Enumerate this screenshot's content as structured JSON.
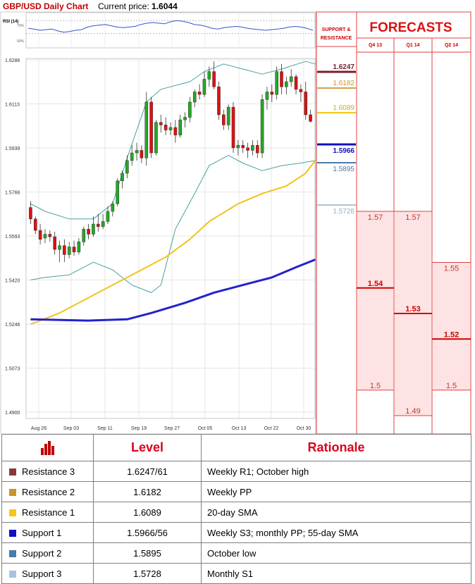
{
  "header": {
    "title": "GBP/USD Daily Chart",
    "price_label": "Current price:",
    "price_value": "1.6044",
    "title_color": "#c00000"
  },
  "chart_data": {
    "type": "candlestick",
    "rsi_label": "RSI (14)",
    "rsi_ticks": [
      "70%",
      "50%"
    ],
    "y_ticks": [
      "1.6286",
      "1.6113",
      "1.5939",
      "1.5766",
      "1.5593",
      "1.5420",
      "1.5246",
      "1.5073",
      "1.4900"
    ],
    "y_tick_values": [
      1.6286,
      1.6113,
      1.5939,
      1.5766,
      1.5593,
      1.542,
      1.5246,
      1.5073,
      1.49
    ],
    "ylim": [
      1.49,
      1.6286
    ],
    "x_ticks": [
      "Aug 26",
      "Sep 03",
      "Sep 11",
      "Sep 19",
      "Sep 27",
      "Oct 05",
      "Oct 13",
      "Oct 22",
      "Oct 30"
    ],
    "colors": {
      "up": "#22aa22",
      "down": "#dd1111",
      "sma20": "#f0c419",
      "sma200": "#2222cc",
      "bollinger": "#4aa0a0"
    },
    "candles": [
      [
        1.5705,
        1.573,
        1.564,
        1.566
      ],
      [
        1.566,
        1.567,
        1.56,
        1.5615
      ],
      [
        1.5615,
        1.564,
        1.556,
        1.558
      ],
      [
        1.5585,
        1.562,
        1.5565,
        1.56
      ],
      [
        1.56,
        1.5615,
        1.557,
        1.559
      ],
      [
        1.559,
        1.561,
        1.552,
        1.554
      ],
      [
        1.554,
        1.5575,
        1.549,
        1.5555
      ],
      [
        1.5555,
        1.558,
        1.549,
        1.552
      ],
      [
        1.552,
        1.557,
        1.5505,
        1.555
      ],
      [
        1.555,
        1.5575,
        1.5515,
        1.553
      ],
      [
        1.553,
        1.5585,
        1.552,
        1.557
      ],
      [
        1.557,
        1.563,
        1.5555,
        1.562
      ],
      [
        1.562,
        1.564,
        1.558,
        1.56
      ],
      [
        1.56,
        1.567,
        1.559,
        1.564
      ],
      [
        1.564,
        1.568,
        1.561,
        1.563
      ],
      [
        1.563,
        1.568,
        1.562,
        1.565
      ],
      [
        1.565,
        1.571,
        1.564,
        1.569
      ],
      [
        1.569,
        1.573,
        1.567,
        1.572
      ],
      [
        1.572,
        1.582,
        1.571,
        1.581
      ],
      [
        1.581,
        1.585,
        1.578,
        1.584
      ],
      [
        1.584,
        1.591,
        1.582,
        1.589
      ],
      [
        1.589,
        1.595,
        1.587,
        1.592
      ],
      [
        1.592,
        1.596,
        1.589,
        1.593
      ],
      [
        1.593,
        1.595,
        1.588,
        1.59
      ],
      [
        1.59,
        1.616,
        1.587,
        1.612
      ],
      [
        1.612,
        1.614,
        1.59,
        1.592
      ],
      [
        1.592,
        1.605,
        1.591,
        1.604
      ],
      [
        1.604,
        1.607,
        1.6,
        1.603
      ],
      [
        1.603,
        1.606,
        1.599,
        1.601
      ],
      [
        1.601,
        1.604,
        1.599,
        1.602
      ],
      [
        1.602,
        1.605,
        1.596,
        1.599
      ],
      [
        1.599,
        1.607,
        1.598,
        1.605
      ],
      [
        1.605,
        1.608,
        1.602,
        1.606
      ],
      [
        1.606,
        1.614,
        1.604,
        1.612
      ],
      [
        1.612,
        1.617,
        1.61,
        1.616
      ],
      [
        1.616,
        1.619,
        1.613,
        1.615
      ],
      [
        1.615,
        1.624,
        1.614,
        1.621
      ],
      [
        1.621,
        1.626,
        1.618,
        1.624
      ],
      [
        1.624,
        1.628,
        1.617,
        1.618
      ],
      [
        1.618,
        1.62,
        1.605,
        1.607
      ],
      [
        1.607,
        1.609,
        1.601,
        1.603
      ],
      [
        1.603,
        1.611,
        1.601,
        1.61
      ],
      [
        1.61,
        1.612,
        1.592,
        1.594
      ],
      [
        1.594,
        1.597,
        1.591,
        1.595
      ],
      [
        1.595,
        1.597,
        1.592,
        1.594
      ],
      [
        1.594,
        1.596,
        1.59,
        1.593
      ],
      [
        1.593,
        1.597,
        1.591,
        1.595
      ],
      [
        1.595,
        1.597,
        1.59,
        1.592
      ],
      [
        1.592,
        1.615,
        1.59,
        1.613
      ],
      [
        1.613,
        1.618,
        1.609,
        1.616
      ],
      [
        1.616,
        1.619,
        1.612,
        1.615
      ],
      [
        1.615,
        1.626,
        1.613,
        1.624
      ],
      [
        1.624,
        1.627,
        1.615,
        1.618
      ],
      [
        1.618,
        1.622,
        1.615,
        1.62
      ],
      [
        1.62,
        1.625,
        1.618,
        1.622
      ],
      [
        1.622,
        1.623,
        1.615,
        1.617
      ],
      [
        1.617,
        1.619,
        1.612,
        1.616
      ],
      [
        1.616,
        1.62,
        1.605,
        1.607
      ],
      [
        1.607,
        1.609,
        1.604,
        1.6044
      ]
    ],
    "sma20_points": [
      [
        1.5246,
        0
      ],
      [
        1.526,
        2
      ],
      [
        1.529,
        6
      ],
      [
        1.533,
        10
      ],
      [
        1.538,
        15
      ],
      [
        1.544,
        21
      ],
      [
        1.551,
        28
      ],
      [
        1.558,
        33
      ],
      [
        1.565,
        37
      ],
      [
        1.572,
        43
      ],
      [
        1.576,
        48
      ],
      [
        1.579,
        53
      ],
      [
        1.584,
        57
      ],
      [
        1.589,
        59
      ]
    ],
    "sma200_points": [
      [
        1.5265,
        0
      ],
      [
        1.526,
        12
      ],
      [
        1.5265,
        20
      ],
      [
        1.529,
        25
      ],
      [
        1.533,
        32
      ],
      [
        1.537,
        38
      ],
      [
        1.54,
        44
      ],
      [
        1.543,
        50
      ],
      [
        1.547,
        55
      ],
      [
        1.55,
        59
      ]
    ],
    "boll_upper": [
      [
        1.572,
        0
      ],
      [
        1.569,
        3
      ],
      [
        1.566,
        8
      ],
      [
        1.566,
        13
      ],
      [
        1.572,
        17
      ],
      [
        1.59,
        20
      ],
      [
        1.612,
        24
      ],
      [
        1.617,
        27
      ],
      [
        1.62,
        33
      ],
      [
        1.624,
        36
      ],
      [
        1.627,
        40
      ],
      [
        1.625,
        44
      ],
      [
        1.623,
        48
      ],
      [
        1.625,
        52
      ],
      [
        1.628,
        57
      ],
      [
        1.627,
        59
      ]
    ],
    "boll_lower": [
      [
        1.542,
        0
      ],
      [
        1.543,
        3
      ],
      [
        1.544,
        8
      ],
      [
        1.549,
        13
      ],
      [
        1.546,
        17
      ],
      [
        1.54,
        21
      ],
      [
        1.537,
        25
      ],
      [
        1.54,
        27
      ],
      [
        1.562,
        30
      ],
      [
        1.576,
        34
      ],
      [
        1.587,
        37
      ],
      [
        1.591,
        41
      ],
      [
        1.588,
        44
      ],
      [
        1.585,
        48
      ],
      [
        1.587,
        52
      ],
      [
        1.588,
        56
      ],
      [
        1.589,
        59
      ]
    ],
    "rsi_series": [
      58,
      57,
      55,
      56,
      57,
      54,
      52,
      53,
      55,
      56,
      60,
      62,
      63,
      64,
      62,
      60,
      59,
      60,
      61,
      64,
      66,
      67,
      66,
      65,
      68,
      70,
      69,
      67,
      64,
      63,
      61,
      58,
      57,
      59,
      60,
      61,
      60,
      58,
      57,
      56,
      55,
      56,
      57,
      58,
      60,
      61,
      60,
      58,
      55
    ]
  },
  "levels_panel": {
    "header_line1": "SUPPORT &",
    "header_line2": "RESISTANCE",
    "r3": "1.6247",
    "r2": "1.6182",
    "r1": "1.6089",
    "s1": "1.5966",
    "s2": "1.5895",
    "s3": "1.5728"
  },
  "forecasts": {
    "title": "FORECASTS",
    "columns": [
      {
        "label": "Q4 13",
        "top": "1.57",
        "mid": "1.54",
        "low": "1.5"
      },
      {
        "label": "Q1 14",
        "top": "1.57",
        "mid": "1.53",
        "low": "1.49"
      },
      {
        "label": "Q2 14",
        "top": "1.55",
        "mid": "1.52",
        "low": "1.5"
      }
    ]
  },
  "table": {
    "col_level": "Level",
    "col_rationale": "Rationale",
    "rows": [
      {
        "name": "Resistance 3",
        "level": "1.6247/61",
        "rationale": "Weekly R1; October high",
        "color": "#8b3a3a"
      },
      {
        "name": "Resistance 2",
        "level": "1.6182",
        "rationale": "Weekly PP",
        "color": "#c8962a"
      },
      {
        "name": "Resistance 1",
        "level": "1.6089",
        "rationale": "20-day SMA",
        "color": "#f5c518"
      },
      {
        "name": "Support 1",
        "level": "1.5966/56",
        "rationale": "Weekly S3; monthly PP; 55-day SMA",
        "color": "#1010c0"
      },
      {
        "name": "Support 2",
        "level": "1.5895",
        "rationale": "October low",
        "color": "#4a7aa8"
      },
      {
        "name": "Support 3",
        "level": "1.5728",
        "rationale": "Monthly S1",
        "color": "#a8c4dc"
      }
    ]
  }
}
